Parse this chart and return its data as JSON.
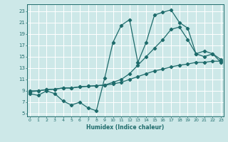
{
  "title": "",
  "xlabel": "Humidex (Indice chaleur)",
  "bg_color": "#cde8e8",
  "grid_color": "#ffffff",
  "line_color": "#1e6b6b",
  "x_ticks": [
    0,
    1,
    2,
    3,
    4,
    5,
    6,
    7,
    8,
    9,
    10,
    11,
    12,
    13,
    14,
    15,
    16,
    17,
    18,
    19,
    20,
    21,
    22,
    23
  ],
  "y_ticks": [
    5,
    7,
    9,
    11,
    13,
    15,
    17,
    19,
    21,
    23
  ],
  "xlim": [
    -0.3,
    23.3
  ],
  "ylim": [
    4.5,
    24.2
  ],
  "series1_x": [
    0,
    1,
    2,
    3,
    4,
    5,
    6,
    7,
    8,
    9,
    10,
    11,
    12,
    13,
    14,
    15,
    16,
    17,
    18,
    19,
    20,
    21,
    22,
    23
  ],
  "series1_y": [
    8.5,
    8.2,
    9.0,
    8.5,
    7.2,
    6.5,
    7.0,
    6.0,
    5.5,
    11.2,
    17.5,
    20.5,
    21.5,
    14.0,
    17.5,
    22.3,
    22.8,
    23.2,
    21.0,
    20.0,
    15.5,
    16.0,
    15.5,
    14.0
  ],
  "series2_x": [
    0,
    1,
    2,
    3,
    4,
    5,
    6,
    7,
    8,
    9,
    10,
    11,
    12,
    13,
    14,
    15,
    16,
    17,
    18,
    19,
    20,
    21,
    22,
    23
  ],
  "series2_y": [
    9.0,
    9.0,
    9.2,
    9.3,
    9.5,
    9.5,
    9.7,
    9.8,
    9.9,
    10.0,
    10.5,
    11.0,
    12.0,
    13.5,
    15.0,
    16.5,
    18.0,
    19.8,
    20.2,
    18.0,
    15.5,
    15.0,
    15.5,
    14.5
  ],
  "series3_x": [
    0,
    1,
    2,
    3,
    4,
    5,
    6,
    7,
    8,
    9,
    10,
    11,
    12,
    13,
    14,
    15,
    16,
    17,
    18,
    19,
    20,
    21,
    22,
    23
  ],
  "series3_y": [
    8.8,
    9.0,
    9.2,
    9.3,
    9.5,
    9.5,
    9.7,
    9.8,
    9.9,
    10.0,
    10.2,
    10.5,
    11.0,
    11.5,
    12.0,
    12.5,
    12.8,
    13.2,
    13.5,
    13.7,
    14.0,
    14.0,
    14.2,
    14.2
  ]
}
